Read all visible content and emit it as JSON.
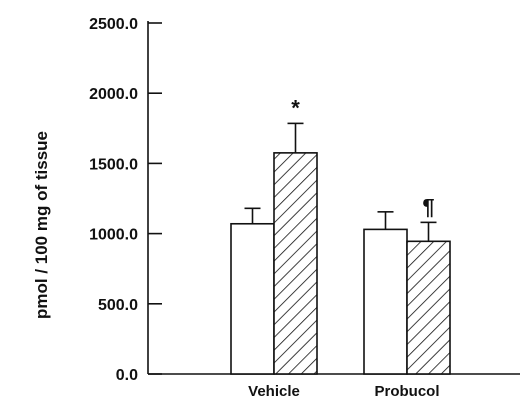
{
  "chart_data": {
    "type": "bar",
    "ylabel": "pmol / 100 mg of tissue",
    "ylim": [
      0,
      2500
    ],
    "yticks": [
      "0.0",
      "500.0",
      "1000.0",
      "1500.0",
      "2000.0",
      "2500.0"
    ],
    "categories": [
      "Vehicle",
      "Probucol"
    ],
    "series": [
      {
        "fill": "open",
        "values": [
          1070,
          1030
        ],
        "errors": [
          110,
          125
        ]
      },
      {
        "fill": "hatched",
        "values": [
          1575,
          945
        ],
        "errors": [
          210,
          135
        ]
      }
    ],
    "annotations": [
      {
        "text": "*",
        "category": 0,
        "series": 1
      },
      {
        "text": "¶",
        "category": 1,
        "series": 1
      }
    ],
    "colors": {
      "axis": "#111111",
      "bar_fill": "#ffffff",
      "bar_stroke": "#111111"
    }
  }
}
